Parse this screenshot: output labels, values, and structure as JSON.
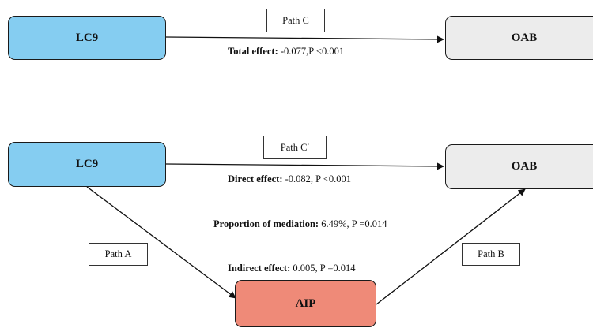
{
  "top_model": {
    "exposure": "LC9",
    "outcome": "OAB",
    "path_label": "Path C",
    "total_effect": {
      "label": "Total effect:",
      "value": "-0.077,P <0.001"
    }
  },
  "mediation_model": {
    "exposure": "LC9",
    "outcome": "OAB",
    "mediator": "AIP",
    "path_c_prime": "Path C′",
    "path_a": "Path A",
    "path_b": "Path B",
    "direct_effect": {
      "label": "Direct effect:",
      "value": "-0.082, P <0.001"
    },
    "proportion": {
      "label": "Proportion of mediation:",
      "value": "6.49%, P =0.014"
    },
    "indirect_effect": {
      "label": "Indirect effect:",
      "value": "0.005, P =0.014"
    }
  },
  "colors": {
    "exposure_fill": "#85cdf1",
    "outcome_fill": "#ececec",
    "mediator_fill": "#ef8a78"
  }
}
